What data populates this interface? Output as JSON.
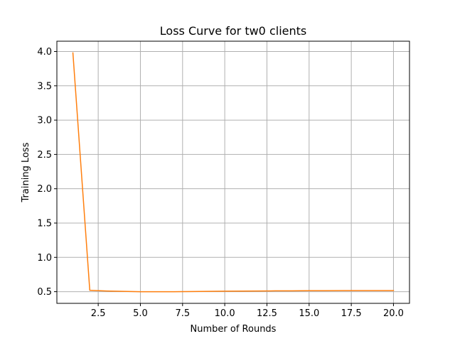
{
  "chart_data": {
    "type": "line",
    "title": "Loss Curve for tw0 clients",
    "xlabel": "Number of Rounds",
    "ylabel": "Training Loss",
    "xlim": [
      0.05,
      20.95
    ],
    "ylim": [
      0.33,
      4.15
    ],
    "xticks": [
      2.5,
      5.0,
      7.5,
      10.0,
      12.5,
      15.0,
      17.5,
      20.0
    ],
    "xtick_labels": [
      "2.5",
      "5.0",
      "7.5",
      "10.0",
      "12.5",
      "15.0",
      "17.5",
      "20.0"
    ],
    "yticks": [
      0.5,
      1.0,
      1.5,
      2.0,
      2.5,
      3.0,
      3.5,
      4.0
    ],
    "ytick_labels": [
      "0.5",
      "1.0",
      "1.5",
      "2.0",
      "2.5",
      "3.0",
      "3.5",
      "4.0"
    ],
    "grid": true,
    "legend": "none",
    "series": [
      {
        "color": "#ff7f0e",
        "x": [
          1,
          2,
          3,
          4,
          5,
          6,
          7,
          8,
          9,
          10,
          11,
          12,
          13,
          14,
          15,
          16,
          17,
          18,
          19,
          20
        ],
        "y": [
          3.98,
          0.52,
          0.51,
          0.505,
          0.5,
          0.5,
          0.5,
          0.502,
          0.505,
          0.507,
          0.508,
          0.51,
          0.512,
          0.513,
          0.515,
          0.515,
          0.516,
          0.516,
          0.517,
          0.517
        ]
      }
    ]
  }
}
